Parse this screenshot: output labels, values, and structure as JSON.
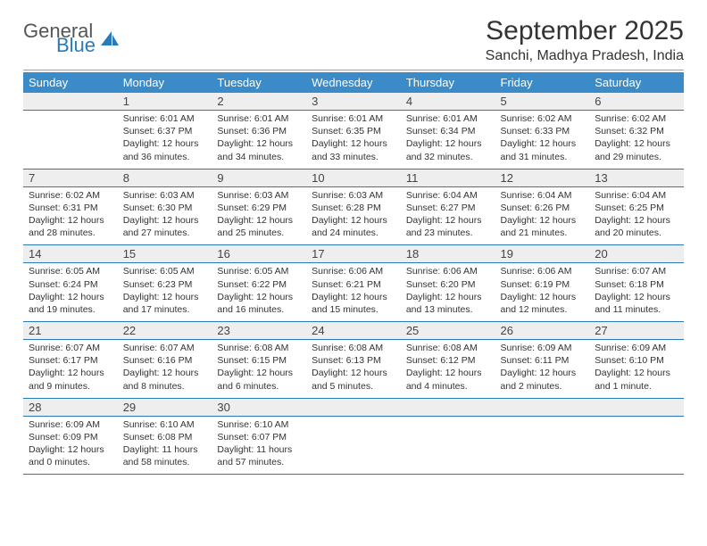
{
  "brand": {
    "word1": "General",
    "word2": "Blue",
    "icon_color": "#2a7ab8"
  },
  "title": {
    "month": "September 2025",
    "location": "Sanchi, Madhya Pradesh, India"
  },
  "style": {
    "header_bg": "#3b8bc9",
    "header_text": "#ffffff",
    "daynum_bg": "#eeeeee",
    "rule_color": "#2a7ab8",
    "body_text": "#333333",
    "font_family": "Arial",
    "page_bg": "#ffffff",
    "header_fontsize": 13,
    "daynum_fontsize": 13,
    "cell_fontsize": 10.5,
    "month_fontsize": 30,
    "location_fontsize": 16
  },
  "weekdays": [
    "Sunday",
    "Monday",
    "Tuesday",
    "Wednesday",
    "Thursday",
    "Friday",
    "Saturday"
  ],
  "weeks": [
    [
      null,
      {
        "n": "1",
        "sr": "Sunrise: 6:01 AM",
        "ss": "Sunset: 6:37 PM",
        "d1": "Daylight: 12 hours",
        "d2": "and 36 minutes."
      },
      {
        "n": "2",
        "sr": "Sunrise: 6:01 AM",
        "ss": "Sunset: 6:36 PM",
        "d1": "Daylight: 12 hours",
        "d2": "and 34 minutes."
      },
      {
        "n": "3",
        "sr": "Sunrise: 6:01 AM",
        "ss": "Sunset: 6:35 PM",
        "d1": "Daylight: 12 hours",
        "d2": "and 33 minutes."
      },
      {
        "n": "4",
        "sr": "Sunrise: 6:01 AM",
        "ss": "Sunset: 6:34 PM",
        "d1": "Daylight: 12 hours",
        "d2": "and 32 minutes."
      },
      {
        "n": "5",
        "sr": "Sunrise: 6:02 AM",
        "ss": "Sunset: 6:33 PM",
        "d1": "Daylight: 12 hours",
        "d2": "and 31 minutes."
      },
      {
        "n": "6",
        "sr": "Sunrise: 6:02 AM",
        "ss": "Sunset: 6:32 PM",
        "d1": "Daylight: 12 hours",
        "d2": "and 29 minutes."
      }
    ],
    [
      {
        "n": "7",
        "sr": "Sunrise: 6:02 AM",
        "ss": "Sunset: 6:31 PM",
        "d1": "Daylight: 12 hours",
        "d2": "and 28 minutes."
      },
      {
        "n": "8",
        "sr": "Sunrise: 6:03 AM",
        "ss": "Sunset: 6:30 PM",
        "d1": "Daylight: 12 hours",
        "d2": "and 27 minutes."
      },
      {
        "n": "9",
        "sr": "Sunrise: 6:03 AM",
        "ss": "Sunset: 6:29 PM",
        "d1": "Daylight: 12 hours",
        "d2": "and 25 minutes."
      },
      {
        "n": "10",
        "sr": "Sunrise: 6:03 AM",
        "ss": "Sunset: 6:28 PM",
        "d1": "Daylight: 12 hours",
        "d2": "and 24 minutes."
      },
      {
        "n": "11",
        "sr": "Sunrise: 6:04 AM",
        "ss": "Sunset: 6:27 PM",
        "d1": "Daylight: 12 hours",
        "d2": "and 23 minutes."
      },
      {
        "n": "12",
        "sr": "Sunrise: 6:04 AM",
        "ss": "Sunset: 6:26 PM",
        "d1": "Daylight: 12 hours",
        "d2": "and 21 minutes."
      },
      {
        "n": "13",
        "sr": "Sunrise: 6:04 AM",
        "ss": "Sunset: 6:25 PM",
        "d1": "Daylight: 12 hours",
        "d2": "and 20 minutes."
      }
    ],
    [
      {
        "n": "14",
        "sr": "Sunrise: 6:05 AM",
        "ss": "Sunset: 6:24 PM",
        "d1": "Daylight: 12 hours",
        "d2": "and 19 minutes."
      },
      {
        "n": "15",
        "sr": "Sunrise: 6:05 AM",
        "ss": "Sunset: 6:23 PM",
        "d1": "Daylight: 12 hours",
        "d2": "and 17 minutes."
      },
      {
        "n": "16",
        "sr": "Sunrise: 6:05 AM",
        "ss": "Sunset: 6:22 PM",
        "d1": "Daylight: 12 hours",
        "d2": "and 16 minutes."
      },
      {
        "n": "17",
        "sr": "Sunrise: 6:06 AM",
        "ss": "Sunset: 6:21 PM",
        "d1": "Daylight: 12 hours",
        "d2": "and 15 minutes."
      },
      {
        "n": "18",
        "sr": "Sunrise: 6:06 AM",
        "ss": "Sunset: 6:20 PM",
        "d1": "Daylight: 12 hours",
        "d2": "and 13 minutes."
      },
      {
        "n": "19",
        "sr": "Sunrise: 6:06 AM",
        "ss": "Sunset: 6:19 PM",
        "d1": "Daylight: 12 hours",
        "d2": "and 12 minutes."
      },
      {
        "n": "20",
        "sr": "Sunrise: 6:07 AM",
        "ss": "Sunset: 6:18 PM",
        "d1": "Daylight: 12 hours",
        "d2": "and 11 minutes."
      }
    ],
    [
      {
        "n": "21",
        "sr": "Sunrise: 6:07 AM",
        "ss": "Sunset: 6:17 PM",
        "d1": "Daylight: 12 hours",
        "d2": "and 9 minutes."
      },
      {
        "n": "22",
        "sr": "Sunrise: 6:07 AM",
        "ss": "Sunset: 6:16 PM",
        "d1": "Daylight: 12 hours",
        "d2": "and 8 minutes."
      },
      {
        "n": "23",
        "sr": "Sunrise: 6:08 AM",
        "ss": "Sunset: 6:15 PM",
        "d1": "Daylight: 12 hours",
        "d2": "and 6 minutes."
      },
      {
        "n": "24",
        "sr": "Sunrise: 6:08 AM",
        "ss": "Sunset: 6:13 PM",
        "d1": "Daylight: 12 hours",
        "d2": "and 5 minutes."
      },
      {
        "n": "25",
        "sr": "Sunrise: 6:08 AM",
        "ss": "Sunset: 6:12 PM",
        "d1": "Daylight: 12 hours",
        "d2": "and 4 minutes."
      },
      {
        "n": "26",
        "sr": "Sunrise: 6:09 AM",
        "ss": "Sunset: 6:11 PM",
        "d1": "Daylight: 12 hours",
        "d2": "and 2 minutes."
      },
      {
        "n": "27",
        "sr": "Sunrise: 6:09 AM",
        "ss": "Sunset: 6:10 PM",
        "d1": "Daylight: 12 hours",
        "d2": "and 1 minute."
      }
    ],
    [
      {
        "n": "28",
        "sr": "Sunrise: 6:09 AM",
        "ss": "Sunset: 6:09 PM",
        "d1": "Daylight: 12 hours",
        "d2": "and 0 minutes."
      },
      {
        "n": "29",
        "sr": "Sunrise: 6:10 AM",
        "ss": "Sunset: 6:08 PM",
        "d1": "Daylight: 11 hours",
        "d2": "and 58 minutes."
      },
      {
        "n": "30",
        "sr": "Sunrise: 6:10 AM",
        "ss": "Sunset: 6:07 PM",
        "d1": "Daylight: 11 hours",
        "d2": "and 57 minutes."
      },
      null,
      null,
      null,
      null
    ]
  ]
}
